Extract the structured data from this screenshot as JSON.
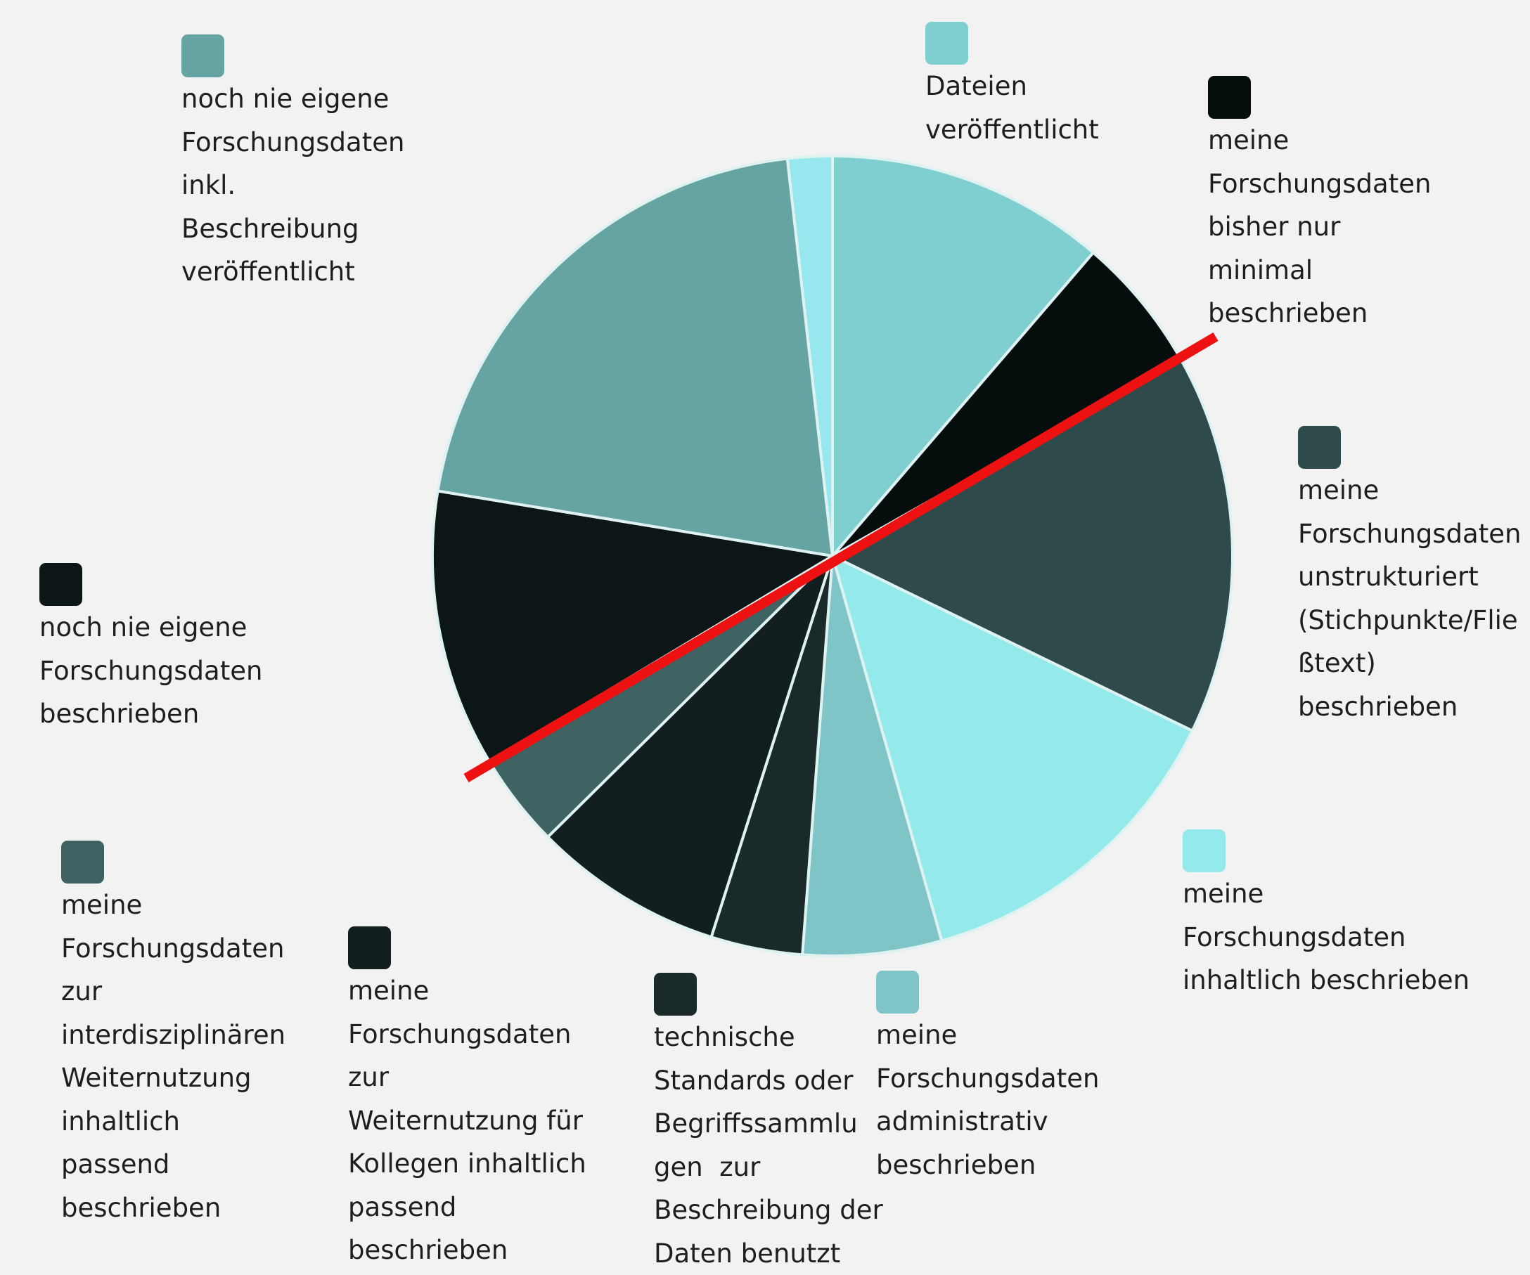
{
  "chart_data": {
    "type": "pie",
    "categories": [
      "Dateien\nveröffentlicht",
      "meine\nForschungsdaten\nbisher nur\nminimal\nbeschrieben",
      "meine\nForschungsdaten\nunstrukturiert\n(Stichpunkte/Flie\nßtext)\nbeschrieben",
      "meine\nForschungsdaten\ninhaltlich beschrieben",
      "meine\nForschungsdaten\nadministrativ\nbeschrieben",
      "technische\nStandards oder\nBegriffssammlu\ngen  zur\nBeschreibung der\nDaten benutzt",
      "meine\nForschungsdaten\nzur\nWeiternutzung für\nKollegen inhaltlich\npassend\nbeschrieben",
      "meine\nForschungsdaten\nzur\ninterdisziplinären\nWeiternutzung\ninhaltlich\npassend\nbeschrieben",
      "noch nie eigene\nForschungsdaten\nbeschrieben",
      "noch nie eigene\nForschungsdaten\ninkl.\nBeschreibung\nveröffentlicht",
      null
    ],
    "values": [
      11.3,
      5.5,
      15.4,
      13.4,
      5.6,
      3.7,
      7.7,
      3.8,
      11.2,
      20.6,
      1.8
    ],
    "colors": [
      "#80cfd0",
      "#050d0d",
      "#2e4a4a",
      "#94eaea",
      "#7fc4c6",
      "#1a2a2a",
      "#131e1e",
      "#3f6262",
      "#0d1616",
      "#66a3a3",
      "#96e8ee"
    ]
  }
}
